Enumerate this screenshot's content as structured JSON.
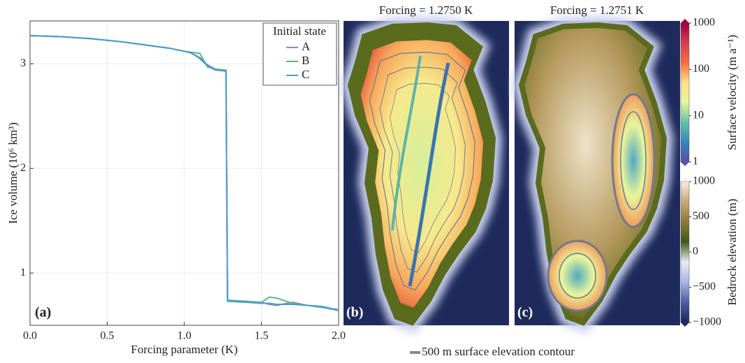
{
  "chart_data": [
    {
      "type": "line",
      "panel_label": "(a)",
      "xlabel": "Forcing parameter (K)",
      "ylabel": "Ice volume (10⁶ km³)",
      "x": [
        0,
        0.2,
        0.4,
        0.6,
        0.8,
        0.9,
        1.0,
        1.05,
        1.1,
        1.15,
        1.2,
        1.27,
        1.28,
        1.4,
        1.5,
        1.55,
        1.6,
        1.7,
        1.8,
        1.9,
        2.0
      ],
      "series": [
        {
          "name": "A",
          "color": "#9b82bd",
          "values": [
            3.27,
            3.26,
            3.24,
            3.21,
            3.17,
            3.15,
            3.12,
            3.1,
            3.06,
            2.99,
            2.95,
            2.93,
            0.74,
            0.72,
            0.72,
            0.7,
            0.69,
            0.72,
            0.69,
            0.67,
            0.64
          ]
        },
        {
          "name": "B",
          "color": "#5db58a",
          "values": [
            3.27,
            3.26,
            3.24,
            3.21,
            3.17,
            3.15,
            3.12,
            3.11,
            3.1,
            2.97,
            2.95,
            2.94,
            0.74,
            0.73,
            0.72,
            0.77,
            0.76,
            0.71,
            0.69,
            0.68,
            0.64
          ]
        },
        {
          "name": "C",
          "color": "#4a9ccc",
          "values": [
            3.27,
            3.26,
            3.24,
            3.21,
            3.17,
            3.15,
            3.12,
            3.1,
            3.05,
            2.98,
            2.94,
            2.93,
            0.73,
            0.72,
            0.71,
            0.71,
            0.7,
            0.7,
            0.69,
            0.67,
            0.65
          ]
        }
      ],
      "legend_title": "Initial state",
      "legend": "upper right",
      "grid": true,
      "xlim": [
        0,
        2
      ],
      "xticks": [
        {
          "value": 0,
          "label": "0.0"
        },
        0.5,
        {
          "value": 1,
          "label": "1.0"
        },
        1.5,
        {
          "value": 2,
          "label": "2.0"
        }
      ],
      "ylim": [
        0.5,
        3.41
      ],
      "yticks": [
        1,
        2,
        3
      ]
    },
    {
      "type": "colorbar",
      "label": "Surface velocity (m a⁻¹)",
      "log": true,
      "ylim": [
        1,
        1000
      ],
      "yticks": [
        1,
        10,
        100,
        1000
      ],
      "colors": [
        "#5e4fa2",
        "#3288bd",
        "#66c2a5",
        "#e6f598",
        "#fee08b",
        "#f46d43",
        "#d53e4f",
        "#9e0142"
      ]
    },
    {
      "type": "colorbar",
      "label": "Bedrock elevation (m)",
      "log": false,
      "ylim": [
        -1000,
        1000
      ],
      "yticks": [
        {
          "value": -1000,
          "label": "−1000"
        },
        {
          "value": -500,
          "label": "−500"
        },
        0,
        500,
        1000
      ],
      "colors": [
        "#1c2658",
        "#4d5da8",
        "#aab4e0",
        "#e8ebf6",
        "#3f5a14",
        "#8c7a3a",
        "#c9a878",
        "#f6eee2"
      ]
    }
  ],
  "maps": [
    {
      "title": "Forcing = 1.2750 K",
      "label": "(b)"
    },
    {
      "title": "Forcing = 1.2751 K",
      "label": "(c)"
    }
  ],
  "contour_legend": "500 m surface elevation contour"
}
